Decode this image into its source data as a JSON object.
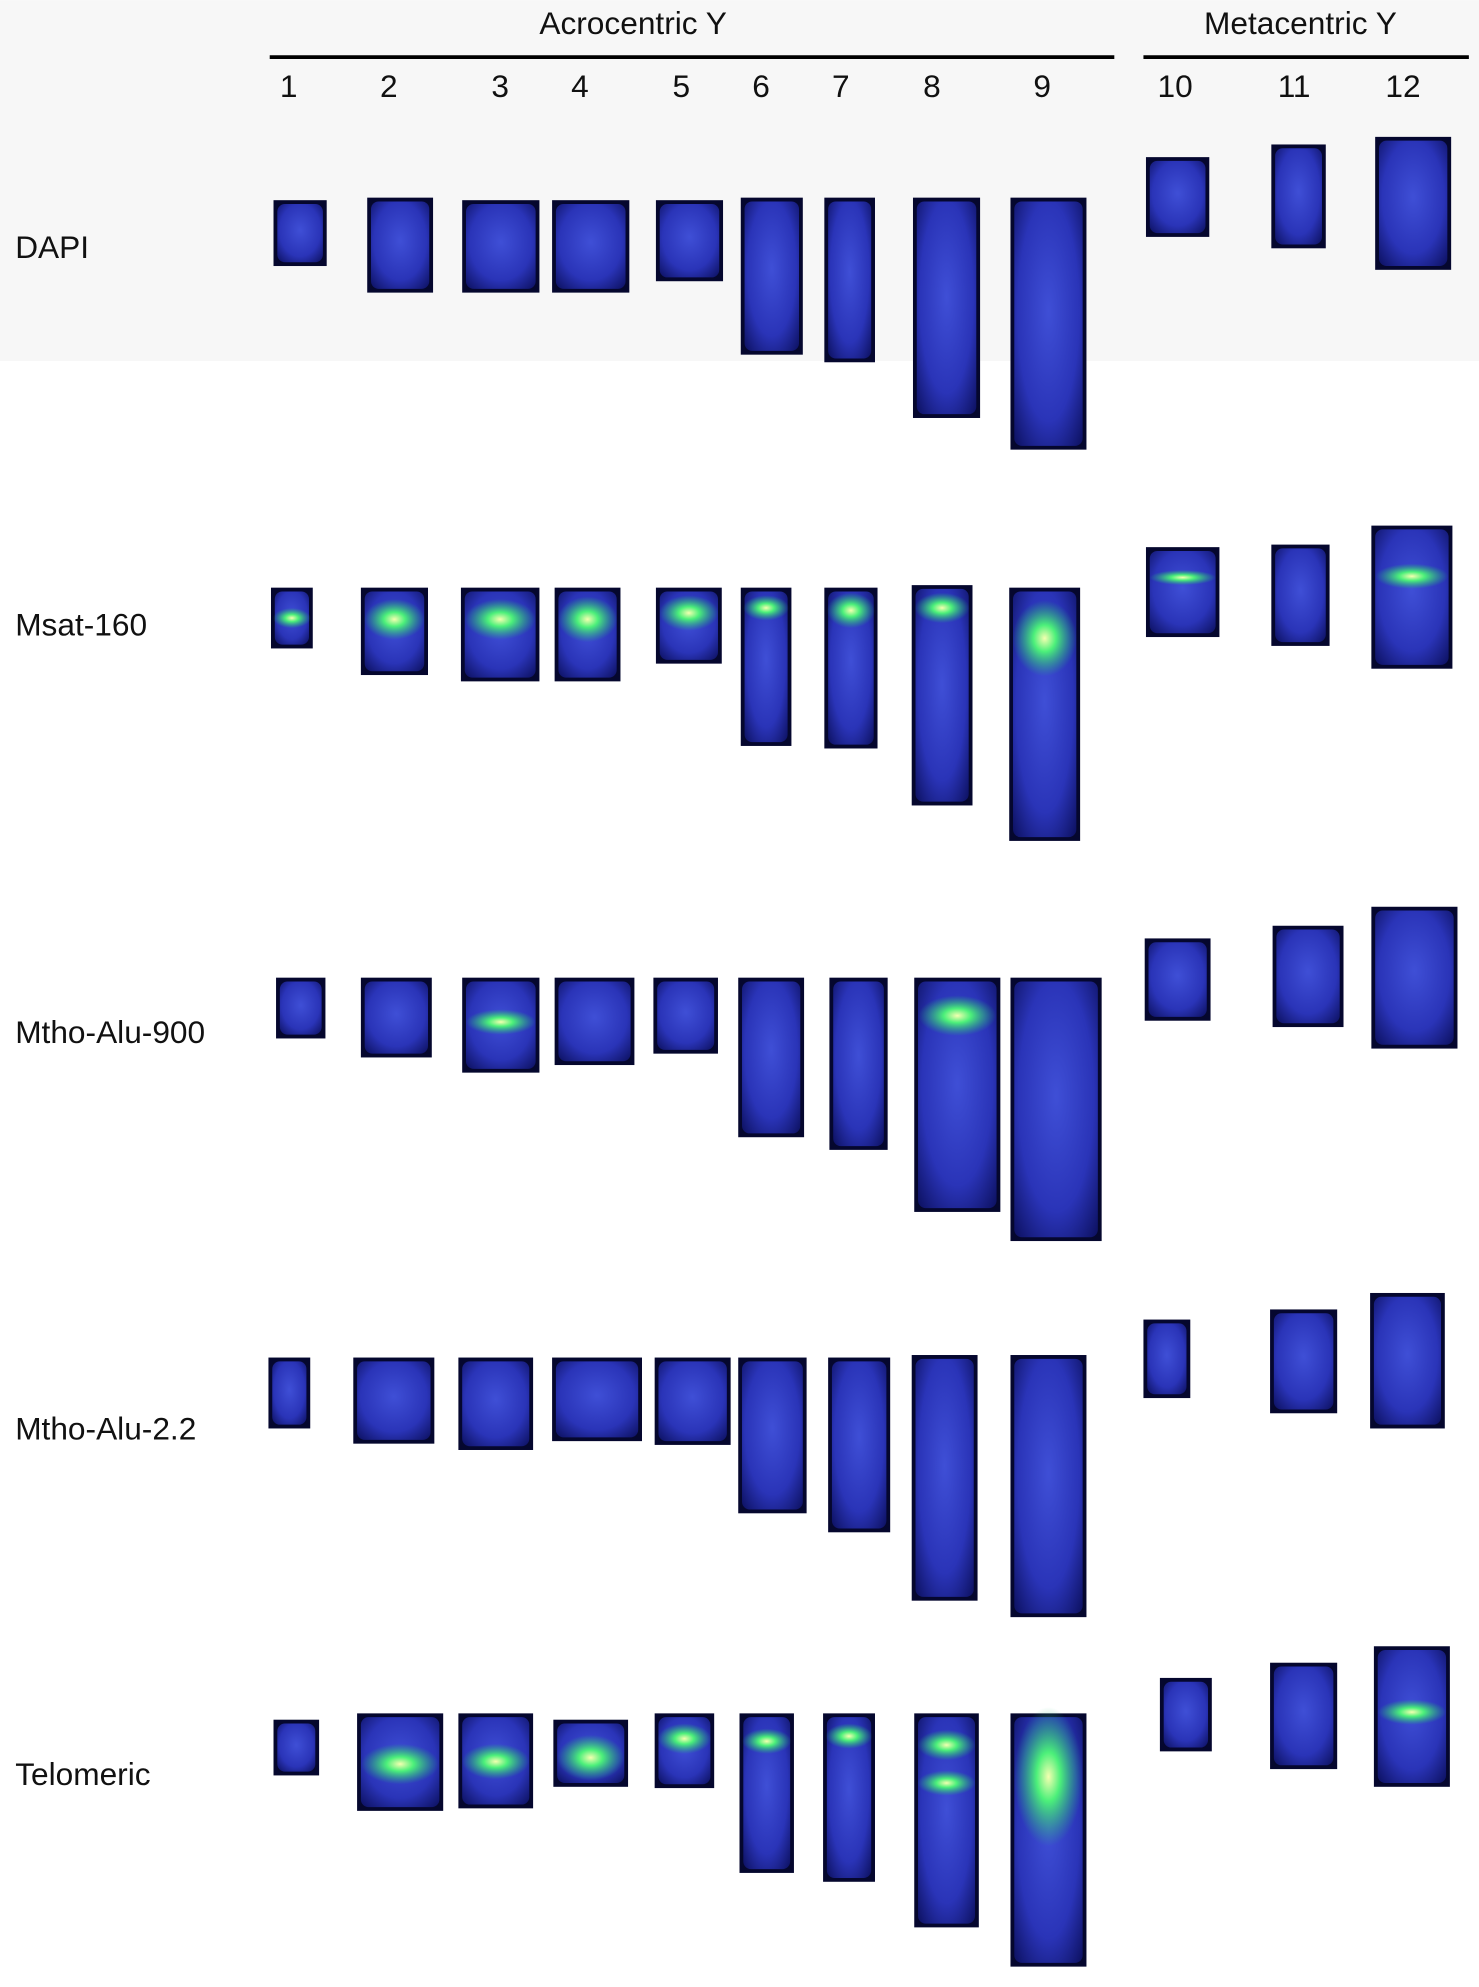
{
  "header": {
    "groups": [
      "Acrocentric Y",
      "Metacentric Y"
    ],
    "columns": [
      "1",
      "2",
      "3",
      "4",
      "5",
      "6",
      "7",
      "8",
      "9",
      "10",
      "11",
      "12"
    ]
  },
  "rows": [
    "DAPI",
    "Msat-160",
    "Mtho-Alu-900",
    "Mtho-Alu-2.2",
    "Telomeric"
  ]
}
